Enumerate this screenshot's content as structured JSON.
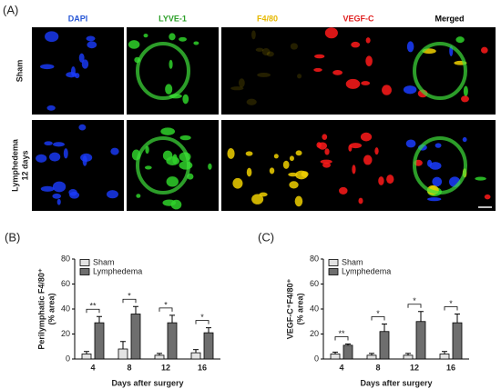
{
  "panel_a": {
    "label": "(A)",
    "columns": [
      {
        "text": "DAPI",
        "color": "#2757d6"
      },
      {
        "text": "LYVE-1",
        "color": "#2ea02a"
      },
      {
        "text": "F4/80",
        "color": "#e6b800"
      },
      {
        "text": "VEGF-C",
        "color": "#e02020"
      },
      {
        "text": "Merged",
        "color": "#000000"
      }
    ],
    "rows": [
      [
        "Sham"
      ],
      [
        "Lymphedema",
        "12 days"
      ]
    ]
  },
  "chart_data": [
    {
      "panel_label": "(B)",
      "type": "bar",
      "xlabel": "Days after surgery",
      "ylabel": [
        "Perilymphatic F4/80⁺",
        "(% area)"
      ],
      "categories": [
        "4",
        "8",
        "12",
        "16"
      ],
      "series": [
        {
          "name": "Sham",
          "color": "#e3e3e3",
          "values": [
            4,
            8,
            3,
            5
          ],
          "errors": [
            2,
            6,
            1.5,
            2.5
          ]
        },
        {
          "name": "Lymphedema",
          "color": "#6e6e6e",
          "values": [
            29,
            36,
            29,
            21
          ],
          "errors": [
            5,
            6,
            6,
            4
          ]
        }
      ],
      "ylim": [
        0,
        80
      ],
      "yticks": [
        0,
        20,
        40,
        60,
        80
      ],
      "annotations": [
        "**",
        "*",
        "*",
        "*"
      ],
      "legend": "upper left"
    },
    {
      "panel_label": "(C)",
      "type": "bar",
      "xlabel": "Days after surgery",
      "ylabel": [
        "VEGF-C⁺F4/80⁺",
        "(% area)"
      ],
      "categories": [
        "4",
        "8",
        "12",
        "16"
      ],
      "series": [
        {
          "name": "Sham",
          "color": "#e3e3e3",
          "values": [
            4,
            3,
            3,
            4
          ],
          "errors": [
            1.5,
            1.5,
            1.5,
            2
          ]
        },
        {
          "name": "Lymphedema",
          "color": "#6e6e6e",
          "values": [
            11,
            22,
            30,
            29
          ],
          "errors": [
            1,
            6,
            8,
            7
          ]
        }
      ],
      "ylim": [
        0,
        80
      ],
      "yticks": [
        0,
        20,
        40,
        60,
        80
      ],
      "annotations": [
        "**",
        "*",
        "*",
        "*"
      ],
      "legend": "upper left"
    }
  ]
}
